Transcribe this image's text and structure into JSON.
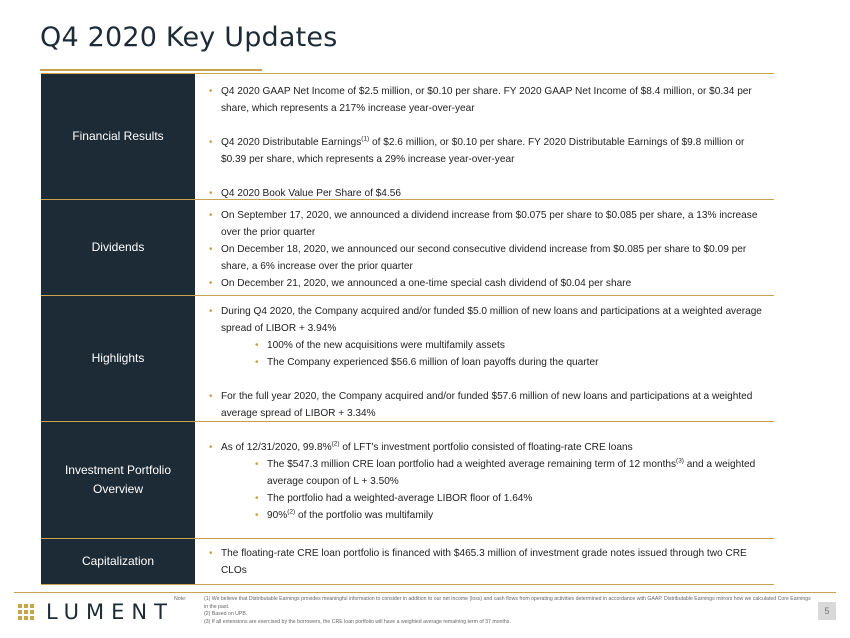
{
  "title": "Q4 2020 Key Updates",
  "rows": {
    "financial": {
      "label": "Financial Results",
      "b1": "Q4 2020 GAAP Net Income of $2.5 million, or $0.10 per share. FY 2020 GAAP Net Income of $8.4 million, or $0.34 per share, which represents a 217% increase year-over-year",
      "b2_pre": "Q4 2020 Distributable Earnings",
      "b2_sup": "(1)",
      "b2_post": " of $2.6 million, or $0.10 per share. FY 2020 Distributable Earnings of $9.8 million or $0.39 per share, which represents a 29% increase year-over-year",
      "b3": "Q4 2020 Book Value Per Share of $4.56"
    },
    "dividends": {
      "label": "Dividends",
      "b1": "On September 17, 2020, we announced a dividend increase from $0.075 per share to $0.085 per share, a 13% increase over the prior quarter",
      "b2": "On December 18, 2020, we announced our second consecutive dividend increase from $0.085 per share to $0.09 per share, a 6% increase over the prior quarter",
      "b3": "On December 21, 2020, we announced a one-time special cash dividend of $0.04 per share"
    },
    "highlights": {
      "label": "Highlights",
      "b1": "During Q4 2020, the Company acquired and/or funded $5.0 million of new loans and participations at a weighted average spread of LIBOR + 3.94%",
      "s1": "100% of the new acquisitions were multifamily assets",
      "s2": "The Company experienced $56.6 million of loan payoffs during the quarter",
      "b2": "For the full year 2020, the Company acquired and/or funded $57.6 million of new loans and participations at a weighted average spread of LIBOR + 3.34%"
    },
    "portfolio": {
      "label_line1": "Investment Portfolio",
      "label_line2": "Overview",
      "b1_pre": "As of 12/31/2020, 99.8%",
      "b1_sup": "(2)",
      "b1_post": " of LFT's investment portfolio consisted of floating-rate CRE loans",
      "s1_pre": "The $547.3 million CRE loan portfolio had a weighted average remaining term of 12 months",
      "s1_sup": "(3)",
      "s1_post": " and a weighted average coupon of L + 3.50%",
      "s2": "The portfolio had a weighted-average LIBOR floor of 1.64%",
      "s3_pre": "90%",
      "s3_sup": "(2)",
      "s3_post": " of the portfolio was multifamily"
    },
    "capitalization": {
      "label": "Capitalization",
      "b1": "The floating-rate CRE loan portfolio is financed with $465.3 million of investment grade notes issued through two CRE CLOs"
    }
  },
  "footer": {
    "logo_text": "LUMENT",
    "note_label": "Note:",
    "note1": "(1) We believe that Distributable Earnings provides meaningful information to consider in addition to our net income (loss) and cash flows from operating activities determined in accordance with GAAP. Distributable Earnings mirrors how we calculated Core Earnings in the past.",
    "note2": "(2) Based on UPB.",
    "note3": "(3) If all extensions are exercised by the borrowers, the CRE loan portfolio will have a weighted average remaining term of 37 months.",
    "page_number": "5"
  },
  "colors": {
    "navy": "#1d2b36",
    "gold": "#c9a24d"
  }
}
